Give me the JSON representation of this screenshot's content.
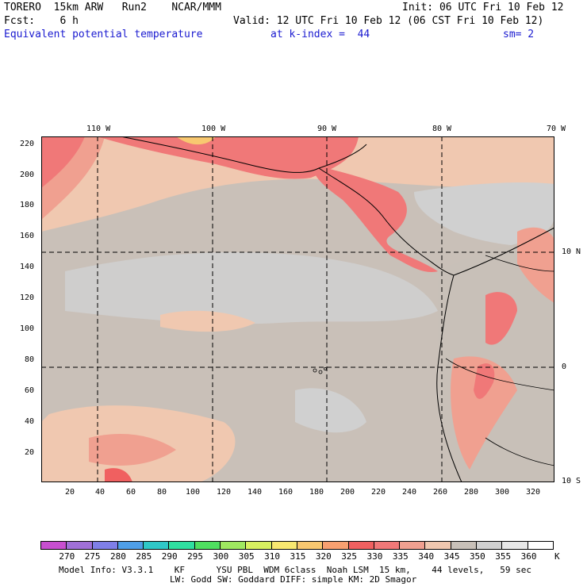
{
  "header": {
    "line1_left": "TORERO  15km ARW   Run2    NCAR/MMM",
    "line1_right": "Init: 06 UTC Fri 10 Feb 12",
    "line2_left": "Fcst:    6 h",
    "line2_right": "Valid: 12 UTC Fri 10 Feb 12 (06 CST Fri 10 Feb 12)",
    "line3_field": "Equivalent potential temperature",
    "line3_level": "at k-index =  44",
    "line3_sm": "sm= 2"
  },
  "axes": {
    "top_lon": [
      "110 W",
      "100 W",
      "90 W",
      "80 W",
      "70 W"
    ],
    "right_lat": [
      "10 N",
      "0",
      "10 S"
    ],
    "left_y": [
      "220",
      "200",
      "180",
      "160",
      "140",
      "120",
      "100",
      "80",
      "60",
      "40",
      "20"
    ],
    "bottom_x": [
      "20",
      "40",
      "60",
      "80",
      "100",
      "120",
      "140",
      "160",
      "180",
      "200",
      "220",
      "240",
      "260",
      "280",
      "300",
      "320"
    ]
  },
  "colorbar": {
    "labels": [
      "270",
      "275",
      "280",
      "285",
      "290",
      "295",
      "300",
      "305",
      "310",
      "315",
      "320",
      "325",
      "330",
      "335",
      "340",
      "345",
      "350",
      "355",
      "360"
    ],
    "unit": "K",
    "colors": [
      "#c84fd0",
      "#a070d8",
      "#7f7fe8",
      "#4f9fe8",
      "#2fc8c8",
      "#2fe0a0",
      "#4fe060",
      "#9fe860",
      "#d8f060",
      "#f8e870",
      "#f8c870",
      "#f8a070",
      "#f06060",
      "#f07878",
      "#f0a090",
      "#f0c8b0",
      "#c8c0b8",
      "#d0d0d0",
      "#e8e8e8",
      "#ffffff"
    ]
  },
  "footer": {
    "line1": "Model Info: V3.3.1    KF      YSU PBL  WDM 6class  Noah LSM  15 km,    44 levels,   59 sec",
    "line2": "LW: Godd SW: Goddard DIFF: simple KM: 2D Smagor"
  }
}
